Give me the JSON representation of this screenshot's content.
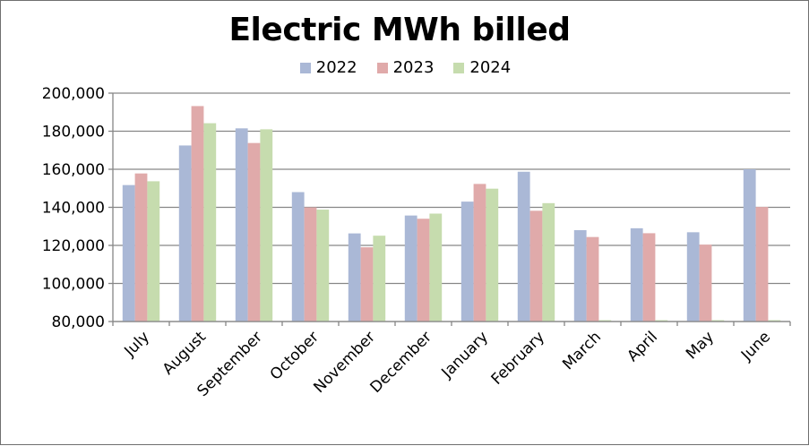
{
  "chart_data": {
    "type": "bar",
    "title": "Electric MWh billed",
    "categories": [
      "July",
      "August",
      "September",
      "October",
      "November",
      "December",
      "January",
      "February",
      "March",
      "April",
      "May",
      "June"
    ],
    "series": [
      {
        "name": "2022",
        "color": "#aab8d6",
        "values": [
          151700,
          172500,
          181500,
          148000,
          126300,
          135700,
          143000,
          158700,
          128000,
          129000,
          126900,
          160000
        ]
      },
      {
        "name": "2023",
        "color": "#e0aaaa",
        "values": [
          157800,
          193200,
          173800,
          140000,
          119000,
          134000,
          152300,
          138200,
          124400,
          126400,
          120400,
          140200
        ]
      },
      {
        "name": "2024",
        "color": "#c6dcae",
        "values": [
          153700,
          184200,
          181000,
          138800,
          125100,
          136700,
          149800,
          142200,
          null,
          null,
          null,
          null
        ]
      }
    ],
    "ylim": [
      80000,
      200000
    ],
    "yticks": [
      "80,000",
      "100,000",
      "120,000",
      "140,000",
      "160,000",
      "180,000",
      "200,000"
    ],
    "grid": true,
    "legend_position": "top"
  }
}
